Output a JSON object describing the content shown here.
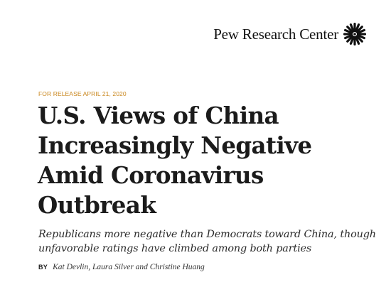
{
  "brand": {
    "name": "Pew Research Center",
    "icon": "pew-sunburst-icon"
  },
  "release_label": "FOR RELEASE APRIL 21, 2020",
  "headline": {
    "lines": [
      "U.S. Views of China",
      "Increasingly Negative",
      "Amid Coronavirus",
      "Outbreak"
    ]
  },
  "subheadline": {
    "lines": [
      "Republicans more negative than Democrats toward China, though",
      "unfavorable ratings have climbed among both parties"
    ]
  },
  "byline": {
    "prefix": "BY",
    "authors": "Kat Devlin, Laura Silver and Christine Huang"
  },
  "colors": {
    "release": "#c9861c",
    "text": "#1b1b1b"
  }
}
